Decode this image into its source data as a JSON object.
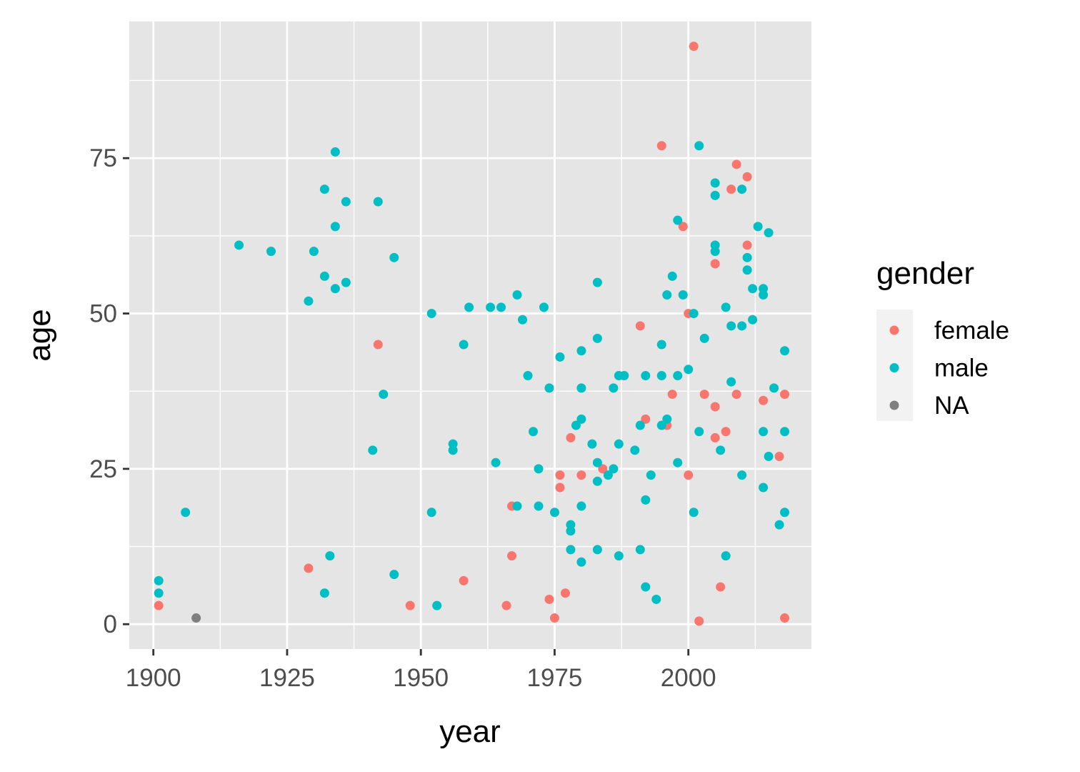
{
  "chart_data": {
    "type": "scatter",
    "xlabel": "year",
    "ylabel": "age",
    "xlim": [
      1895.5,
      2023
    ],
    "ylim": [
      -4,
      97
    ],
    "x_ticks": [
      1900,
      1925,
      1950,
      1975,
      2000
    ],
    "y_ticks": [
      0,
      25,
      50,
      75
    ],
    "x_tick_labels": [
      "1900",
      "1925",
      "1950",
      "1975",
      "2000"
    ],
    "y_tick_labels": [
      "0",
      "25",
      "50",
      "75"
    ],
    "grid": true,
    "panel_background": "#e5e5e5",
    "legend": {
      "title": "gender",
      "placement": "right",
      "entries": [
        {
          "label": "female",
          "color": "#f8766d"
        },
        {
          "label": "male",
          "color": "#00bfc4"
        },
        {
          "label": "NA",
          "color": "#7f7f7f"
        }
      ]
    },
    "series": [
      {
        "name": "female",
        "color": "#f8766d",
        "points": [
          [
            1901,
            3
          ],
          [
            1929,
            9
          ],
          [
            1942,
            45
          ],
          [
            1948,
            3
          ],
          [
            1958,
            7
          ],
          [
            1966,
            3
          ],
          [
            1967,
            11
          ],
          [
            1967,
            19
          ],
          [
            1974,
            4
          ],
          [
            1975,
            1
          ],
          [
            1976,
            24
          ],
          [
            1976,
            22
          ],
          [
            1977,
            5
          ],
          [
            1978,
            30
          ],
          [
            1980,
            24
          ],
          [
            1984,
            25
          ],
          [
            1991,
            48
          ],
          [
            1992,
            33
          ],
          [
            1995,
            77
          ],
          [
            1996,
            32
          ],
          [
            1997,
            37
          ],
          [
            1999,
            64
          ],
          [
            2000,
            50
          ],
          [
            2000,
            24
          ],
          [
            2001,
            93
          ],
          [
            2002,
            0.5
          ],
          [
            2003,
            37
          ],
          [
            2005,
            58
          ],
          [
            2005,
            35
          ],
          [
            2005,
            30
          ],
          [
            2006,
            6
          ],
          [
            2007,
            31
          ],
          [
            2008,
            70
          ],
          [
            2009,
            74
          ],
          [
            2009,
            37
          ],
          [
            2011,
            72
          ],
          [
            2011,
            61
          ],
          [
            2014,
            36
          ],
          [
            2017,
            27
          ],
          [
            2018,
            37
          ],
          [
            2018,
            1
          ]
        ]
      },
      {
        "name": "male",
        "color": "#00bfc4",
        "points": [
          [
            1901,
            7
          ],
          [
            1901,
            5
          ],
          [
            1906,
            18
          ],
          [
            1916,
            61
          ],
          [
            1922,
            60
          ],
          [
            1929,
            52
          ],
          [
            1930,
            60
          ],
          [
            1932,
            70
          ],
          [
            1932,
            56
          ],
          [
            1932,
            5
          ],
          [
            1933,
            11
          ],
          [
            1934,
            76
          ],
          [
            1934,
            64
          ],
          [
            1934,
            54
          ],
          [
            1936,
            68
          ],
          [
            1936,
            55
          ],
          [
            1941,
            28
          ],
          [
            1942,
            68
          ],
          [
            1943,
            37
          ],
          [
            1945,
            59
          ],
          [
            1945,
            8
          ],
          [
            1952,
            50
          ],
          [
            1952,
            18
          ],
          [
            1953,
            3
          ],
          [
            1956,
            29
          ],
          [
            1956,
            28
          ],
          [
            1958,
            45
          ],
          [
            1959,
            51
          ],
          [
            1963,
            51
          ],
          [
            1964,
            26
          ],
          [
            1965,
            51
          ],
          [
            1968,
            53
          ],
          [
            1968,
            19
          ],
          [
            1969,
            49
          ],
          [
            1970,
            40
          ],
          [
            1971,
            31
          ],
          [
            1972,
            25
          ],
          [
            1972,
            19
          ],
          [
            1973,
            51
          ],
          [
            1974,
            38
          ],
          [
            1975,
            18
          ],
          [
            1976,
            43
          ],
          [
            1978,
            16
          ],
          [
            1978,
            15
          ],
          [
            1978,
            12
          ],
          [
            1979,
            32
          ],
          [
            1980,
            44
          ],
          [
            1980,
            38
          ],
          [
            1980,
            33
          ],
          [
            1980,
            19
          ],
          [
            1980,
            10
          ],
          [
            1982,
            29
          ],
          [
            1983,
            55
          ],
          [
            1983,
            46
          ],
          [
            1983,
            26
          ],
          [
            1983,
            23
          ],
          [
            1983,
            12
          ],
          [
            1985,
            24
          ],
          [
            1986,
            38
          ],
          [
            1986,
            25
          ],
          [
            1987,
            40
          ],
          [
            1987,
            29
          ],
          [
            1987,
            11
          ],
          [
            1988,
            40
          ],
          [
            1990,
            28
          ],
          [
            1991,
            32
          ],
          [
            1991,
            12
          ],
          [
            1992,
            40
          ],
          [
            1992,
            20
          ],
          [
            1992,
            6
          ],
          [
            1993,
            24
          ],
          [
            1994,
            4
          ],
          [
            1995,
            45
          ],
          [
            1995,
            40
          ],
          [
            1995,
            32
          ],
          [
            1996,
            53
          ],
          [
            1996,
            33
          ],
          [
            1997,
            56
          ],
          [
            1998,
            65
          ],
          [
            1998,
            40
          ],
          [
            1998,
            26
          ],
          [
            1999,
            53
          ],
          [
            2000,
            41
          ],
          [
            2001,
            50
          ],
          [
            2001,
            18
          ],
          [
            2002,
            77
          ],
          [
            2002,
            31
          ],
          [
            2003,
            46
          ],
          [
            2005,
            71
          ],
          [
            2005,
            69
          ],
          [
            2005,
            61
          ],
          [
            2005,
            60
          ],
          [
            2006,
            28
          ],
          [
            2007,
            51
          ],
          [
            2007,
            11
          ],
          [
            2008,
            48
          ],
          [
            2008,
            39
          ],
          [
            2010,
            70
          ],
          [
            2010,
            48
          ],
          [
            2010,
            24
          ],
          [
            2011,
            59
          ],
          [
            2011,
            57
          ],
          [
            2012,
            54
          ],
          [
            2012,
            49
          ],
          [
            2013,
            64
          ],
          [
            2014,
            54
          ],
          [
            2014,
            53
          ],
          [
            2014,
            31
          ],
          [
            2014,
            22
          ],
          [
            2015,
            63
          ],
          [
            2015,
            27
          ],
          [
            2016,
            38
          ],
          [
            2017,
            16
          ],
          [
            2018,
            44
          ],
          [
            2018,
            31
          ],
          [
            2018,
            18
          ]
        ]
      },
      {
        "name": "NA",
        "color": "#7f7f7f",
        "points": [
          [
            1908,
            1
          ]
        ]
      }
    ]
  }
}
